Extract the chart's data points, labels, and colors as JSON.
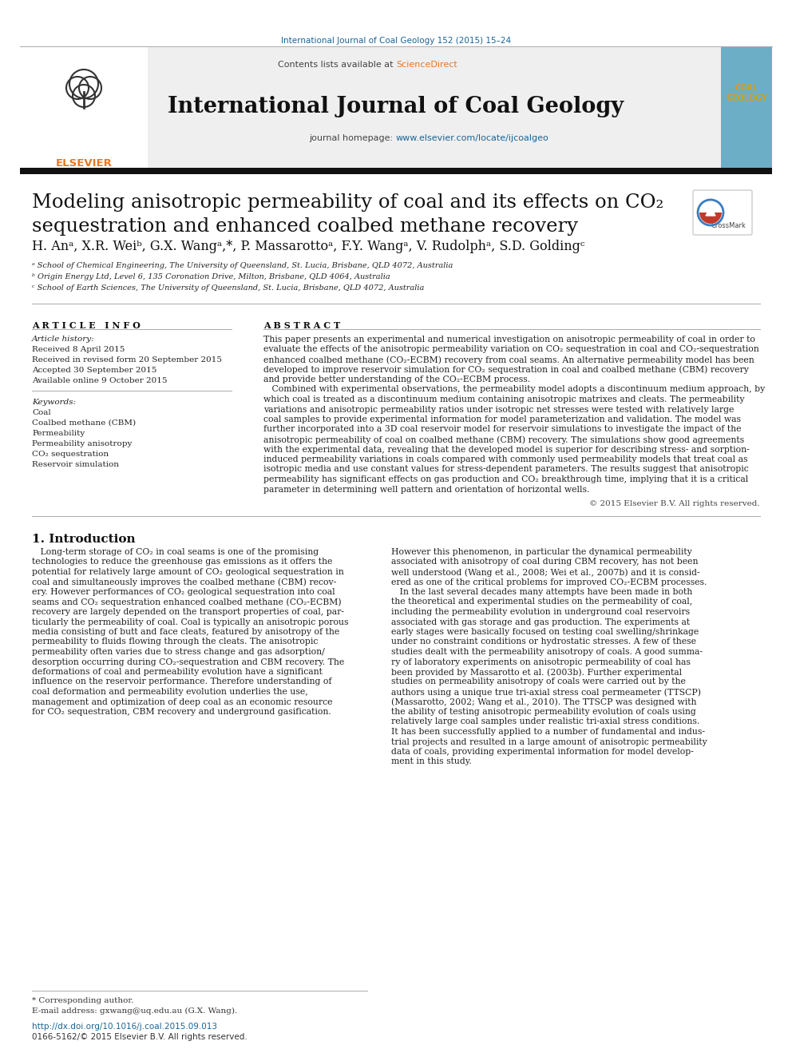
{
  "journal_ref": "International Journal of Coal Geology 152 (2015) 15–24",
  "journal_ref_color": "#1a6496",
  "sciencedirect_color": "#e87722",
  "journal_url_color": "#1a6496",
  "link_color": "#1a6496",
  "bg_color": "#ffffff",
  "text_color": "#1a1a1a",
  "header_bg": "#efefef",
  "thick_bar_color": "#1a1a1a",
  "journal_name": "International Journal of Coal Geology",
  "journal_url": "www.elsevier.com/locate/ijcoalgeo",
  "affil_a": " School of Chemical Engineering, The University of Queensland, St. Lucia, Brisbane, QLD 4072, Australia",
  "affil_b": " Origin Energy Ltd, Level 6, 135 Coronation Drive, Milton, Brisbane, QLD 4064, Australia",
  "affil_c": " School of Earth Sciences, The University of Queensland, St. Lucia, Brisbane, QLD 4072, Australia",
  "article_history": [
    "Received 8 April 2015",
    "Received in revised form 20 September 2015",
    "Accepted 30 September 2015",
    "Available online 9 October 2015"
  ],
  "keywords": [
    "Coal",
    "Coalbed methane (CBM)",
    "Permeability",
    "Permeability anisotropy",
    "CO₂ sequestration",
    "Reservoir simulation"
  ],
  "abstract_lines": [
    "This paper presents an experimental and numerical investigation on anisotropic permeability of coal in order to",
    "evaluate the effects of the anisotropic permeability variation on CO₂ sequestration in coal and CO₂-sequestration",
    "enhanced coalbed methane (CO₂-ECBM) recovery from coal seams. An alternative permeability model has been",
    "developed to improve reservoir simulation for CO₂ sequestration in coal and coalbed methane (CBM) recovery",
    "and provide better understanding of the CO₂-ECBM process.",
    "   Combined with experimental observations, the permeability model adopts a discontinuum medium approach, by",
    "which coal is treated as a discontinuum medium containing anisotropic matrixes and cleats. The permeability",
    "variations and anisotropic permeability ratios under isotropic net stresses were tested with relatively large",
    "coal samples to provide experimental information for model parameterization and validation. The model was",
    "further incorporated into a 3D coal reservoir model for reservoir simulations to investigate the impact of the",
    "anisotropic permeability of coal on coalbed methane (CBM) recovery. The simulations show good agreements",
    "with the experimental data, revealing that the developed model is superior for describing stress- and sorption-",
    "induced permeability variations in coals compared with commonly used permeability models that treat coal as",
    "isotropic media and use constant values for stress-dependent parameters. The results suggest that anisotropic",
    "permeability has significant effects on gas production and CO₂ breakthrough time, implying that it is a critical",
    "parameter in determining well pattern and orientation of horizontal wells."
  ],
  "copyright": "© 2015 Elsevier B.V. All rights reserved.",
  "intro_col1_lines": [
    "   Long-term storage of CO₂ in coal seams is one of the promising",
    "technologies to reduce the greenhouse gas emissions as it offers the",
    "potential for relatively large amount of CO₂ geological sequestration in",
    "coal and simultaneously improves the coalbed methane (CBM) recov-",
    "ery. However performances of CO₂ geological sequestration into coal",
    "seams and CO₂ sequestration enhanced coalbed methane (CO₂-ECBM)",
    "recovery are largely depended on the transport properties of coal, par-",
    "ticularly the permeability of coal. Coal is typically an anisotropic porous",
    "media consisting of butt and face cleats, featured by anisotropy of the",
    "permeability to fluids flowing through the cleats. The anisotropic",
    "permeability often varies due to stress change and gas adsorption/",
    "desorption occurring during CO₂-sequestration and CBM recovery. The",
    "deformations of coal and permeability evolution have a significant",
    "influence on the reservoir performance. Therefore understanding of",
    "coal deformation and permeability evolution underlies the use,",
    "management and optimization of deep coal as an economic resource",
    "for CO₂ sequestration, CBM recovery and underground gasification."
  ],
  "intro_col2_lines": [
    "However this phenomenon, in particular the dynamical permeability",
    "associated with anisotropy of coal during CBM recovery, has not been",
    "well understood (Wang et al., 2008; Wei et al., 2007b) and it is consid-",
    "ered as one of the critical problems for improved CO₂-ECBM processes.",
    "   In the last several decades many attempts have been made in both",
    "the theoretical and experimental studies on the permeability of coal,",
    "including the permeability evolution in underground coal reservoirs",
    "associated with gas storage and gas production. The experiments at",
    "early stages were basically focused on testing coal swelling/shrinkage",
    "under no constraint conditions or hydrostatic stresses. A few of these",
    "studies dealt with the permeability anisotropy of coals. A good summa-",
    "ry of laboratory experiments on anisotropic permeability of coal has",
    "been provided by Massarotto et al. (2003b). Further experimental",
    "studies on permeability anisotropy of coals were carried out by the",
    "authors using a unique true tri-axial stress coal permeameter (TTSCP)",
    "(Massarotto, 2002; Wang et al., 2010). The TTSCP was designed with",
    "the ability of testing anisotropic permeability evolution of coals using",
    "relatively large coal samples under realistic tri-axial stress conditions.",
    "It has been successfully applied to a number of fundamental and indus-",
    "trial projects and resulted in a large amount of anisotropic permeability",
    "data of coals, providing experimental information for model develop-",
    "ment in this study."
  ],
  "footnote_star": "* Corresponding author.",
  "footnote_email": "E-mail address: gxwang@uq.edu.au (G.X. Wang).",
  "doi": "http://dx.doi.org/10.1016/j.coal.2015.09.013",
  "issn": "0166-5162/© 2015 Elsevier B.V. All rights reserved."
}
